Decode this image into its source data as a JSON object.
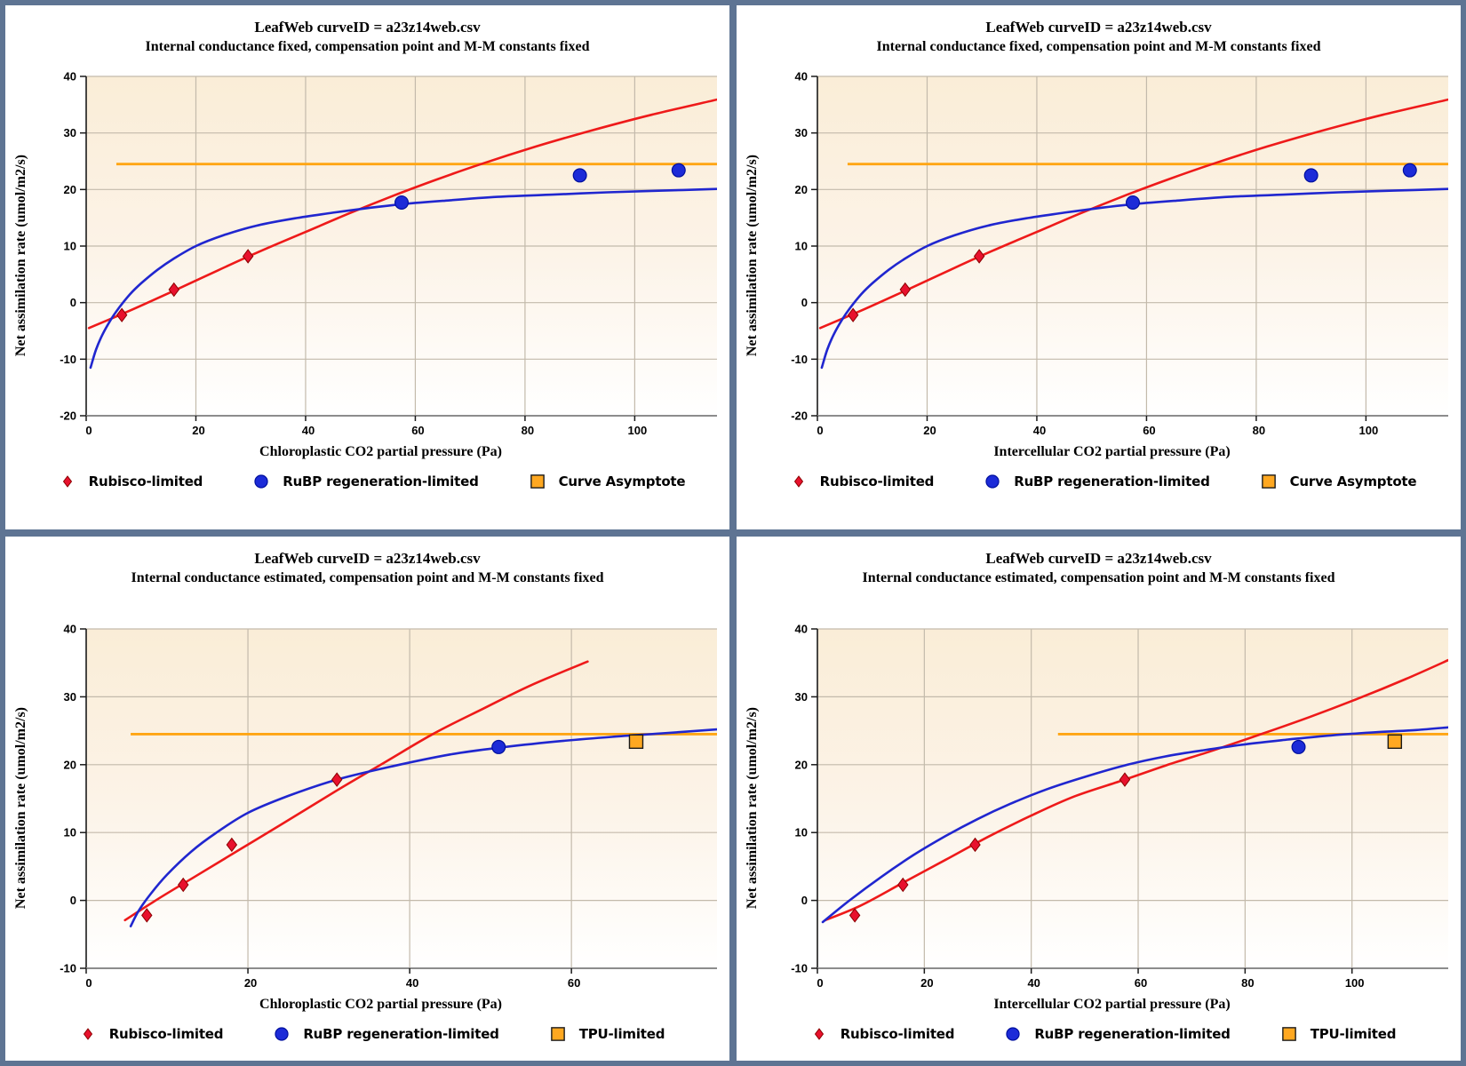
{
  "page": {
    "border_color": "#5E7493",
    "background": "#FFFFFF"
  },
  "colors": {
    "red_curve": "#EE1A1A",
    "blue_curve": "#2026CF",
    "orange": "#FFA513",
    "grid": "#C3BAAB",
    "spine_left": "#1A1A1A",
    "spine_bottom": "#8C8C8C",
    "plot_bg_top": "#FAEDD7",
    "plot_bg_mid": "#FCF3E7",
    "plot_bg_bottom": "#FFFFFF",
    "text": "#000000"
  },
  "chart_data": [
    {
      "type": "scatter",
      "title": "LeafWeb curveID = a23z14web.csv",
      "subtitle": "Internal conductance fixed, compensation point and M-M constants fixed",
      "xlabel": "Chloroplastic CO2 partial pressure (Pa)",
      "ylabel": "Net assimilation rate (umol/m2/s)",
      "xlim": [
        0,
        115
      ],
      "ylim": [
        -20,
        40
      ],
      "xticks": [
        0,
        20,
        40,
        60,
        80,
        100
      ],
      "yticks": [
        -20,
        -10,
        0,
        10,
        20,
        30,
        40
      ],
      "grid": true,
      "legend_position": "bottom",
      "asymptote": {
        "y": 24.5,
        "x_start": 5.5,
        "x_end": 115,
        "color": "#FFA513"
      },
      "series": [
        {
          "name": "Rubisco-limited",
          "marker": "diamond",
          "color": "#E8112D",
          "edge": "#8B0000",
          "points": [
            [
              6.5,
              -2.2
            ],
            [
              16,
              2.3
            ],
            [
              29.5,
              8.2
            ]
          ]
        },
        {
          "name": "RuBP regeneration-limited",
          "marker": "circle",
          "color": "#1C2BD8",
          "edge": "#000F9E",
          "points": [
            [
              57.5,
              17.7
            ],
            [
              90,
              22.5
            ],
            [
              108,
              23.4
            ]
          ]
        },
        {
          "name": "Curve Asymptote",
          "marker": "square",
          "color": "#FFA821",
          "edge": "#1A1A1A",
          "points": []
        }
      ],
      "curves": [
        {
          "name": "rubisco-limited-curve",
          "color": "#EE1A1A",
          "points": [
            [
              0.5,
              -4.5
            ],
            [
              8,
              -1.4
            ],
            [
              16,
              2.1
            ],
            [
              24,
              5.7
            ],
            [
              32,
              9.2
            ],
            [
              40,
              12.5
            ],
            [
              48,
              15.8
            ],
            [
              56,
              18.9
            ],
            [
              64,
              21.8
            ],
            [
              72,
              24.5
            ],
            [
              82,
              27.6
            ],
            [
              92,
              30.4
            ],
            [
              103,
              33.2
            ],
            [
              115,
              35.9
            ]
          ]
        },
        {
          "name": "rubp-regeneration-curve",
          "color": "#2026CF",
          "points": [
            [
              0.8,
              -11.5
            ],
            [
              1.8,
              -8.3
            ],
            [
              3,
              -5.6
            ],
            [
              4.5,
              -3.0
            ],
            [
              6,
              -0.9
            ],
            [
              8,
              1.5
            ],
            [
              10,
              3.4
            ],
            [
              13,
              5.8
            ],
            [
              16,
              7.8
            ],
            [
              20,
              10.0
            ],
            [
              25,
              11.9
            ],
            [
              31,
              13.6
            ],
            [
              38,
              14.9
            ],
            [
              45,
              15.9
            ],
            [
              52,
              16.8
            ],
            [
              57.5,
              17.4
            ],
            [
              65,
              18.0
            ],
            [
              75,
              18.7
            ],
            [
              85,
              19.1
            ],
            [
              95,
              19.5
            ],
            [
              105,
              19.8
            ],
            [
              115,
              20.1
            ]
          ]
        }
      ]
    },
    {
      "type": "scatter",
      "title": "LeafWeb curveID = a23z14web.csv",
      "subtitle": "Internal conductance fixed, compensation point and M-M constants fixed",
      "xlabel": "Intercellular CO2 partial pressure (Pa)",
      "ylabel": "Net assimilation rate (umol/m2/s)",
      "xlim": [
        0,
        115
      ],
      "ylim": [
        -20,
        40
      ],
      "xticks": [
        0,
        20,
        40,
        60,
        80,
        100
      ],
      "yticks": [
        -20,
        -10,
        0,
        10,
        20,
        30,
        40
      ],
      "grid": true,
      "legend_position": "bottom",
      "asymptote": {
        "y": 24.5,
        "x_start": 5.5,
        "x_end": 115,
        "color": "#FFA513"
      },
      "series": [
        {
          "name": "Rubisco-limited",
          "marker": "diamond",
          "color": "#E8112D",
          "edge": "#8B0000",
          "points": [
            [
              6.5,
              -2.2
            ],
            [
              16,
              2.3
            ],
            [
              29.5,
              8.2
            ]
          ]
        },
        {
          "name": "RuBP regeneration-limited",
          "marker": "circle",
          "color": "#1C2BD8",
          "edge": "#000F9E",
          "points": [
            [
              57.5,
              17.7
            ],
            [
              90,
              22.5
            ],
            [
              108,
              23.4
            ]
          ]
        },
        {
          "name": "Curve Asymptote",
          "marker": "square",
          "color": "#FFA821",
          "edge": "#1A1A1A",
          "points": []
        }
      ],
      "curves": [
        {
          "name": "rubisco-limited-curve",
          "color": "#EE1A1A",
          "points": [
            [
              0.5,
              -4.5
            ],
            [
              8,
              -1.4
            ],
            [
              16,
              2.1
            ],
            [
              24,
              5.7
            ],
            [
              32,
              9.2
            ],
            [
              40,
              12.5
            ],
            [
              48,
              15.8
            ],
            [
              56,
              18.9
            ],
            [
              64,
              21.8
            ],
            [
              72,
              24.5
            ],
            [
              82,
              27.6
            ],
            [
              92,
              30.4
            ],
            [
              103,
              33.2
            ],
            [
              115,
              35.9
            ]
          ]
        },
        {
          "name": "rubp-regeneration-curve",
          "color": "#2026CF",
          "points": [
            [
              0.8,
              -11.5
            ],
            [
              1.8,
              -8.3
            ],
            [
              3,
              -5.6
            ],
            [
              4.5,
              -3.0
            ],
            [
              6,
              -0.9
            ],
            [
              8,
              1.5
            ],
            [
              10,
              3.4
            ],
            [
              13,
              5.8
            ],
            [
              16,
              7.8
            ],
            [
              20,
              10.0
            ],
            [
              25,
              11.9
            ],
            [
              31,
              13.6
            ],
            [
              38,
              14.9
            ],
            [
              45,
              15.9
            ],
            [
              52,
              16.8
            ],
            [
              57.5,
              17.4
            ],
            [
              65,
              18.0
            ],
            [
              75,
              18.7
            ],
            [
              85,
              19.1
            ],
            [
              95,
              19.5
            ],
            [
              105,
              19.8
            ],
            [
              115,
              20.1
            ]
          ]
        }
      ]
    },
    {
      "type": "scatter",
      "title": "LeafWeb curveID = a23z14web.csv",
      "subtitle": "Internal conductance estimated, compensation point and M-M constants fixed",
      "xlabel": "Chloroplastic CO2 partial pressure (Pa)",
      "ylabel": "Net assimilation rate (umol/m2/s)",
      "xlim": [
        0,
        78
      ],
      "ylim": [
        -10,
        40
      ],
      "xticks": [
        0,
        20,
        40,
        60
      ],
      "yticks": [
        -10,
        0,
        10,
        20,
        30,
        40
      ],
      "grid": true,
      "legend_position": "bottom",
      "asymptote": {
        "y": 24.5,
        "x_start": 5.5,
        "x_end": 78,
        "color": "#FFA513"
      },
      "series": [
        {
          "name": "Rubisco-limited",
          "marker": "diamond",
          "color": "#E8112D",
          "edge": "#8B0000",
          "points": [
            [
              7.5,
              -2.2
            ],
            [
              12,
              2.3
            ],
            [
              18,
              8.2
            ],
            [
              31,
              17.8
            ]
          ]
        },
        {
          "name": "RuBP regeneration-limited",
          "marker": "circle",
          "color": "#1C2BD8",
          "edge": "#000F9E",
          "points": [
            [
              51,
              22.6
            ]
          ]
        },
        {
          "name": "TPU-limited",
          "marker": "square",
          "color": "#FFA821",
          "edge": "#1A1A1A",
          "points": [
            [
              68,
              23.4
            ]
          ]
        }
      ],
      "curves": [
        {
          "name": "rubisco-limited-curve",
          "color": "#EE1A1A",
          "points": [
            [
              4.8,
              -2.9
            ],
            [
              9,
              0.3
            ],
            [
              14,
              3.9
            ],
            [
              19,
              7.5
            ],
            [
              24,
              11.1
            ],
            [
              31,
              16.2
            ],
            [
              37,
              20.4
            ],
            [
              43,
              24.6
            ],
            [
              49,
              28.2
            ],
            [
              55,
              31.7
            ],
            [
              62,
              35.2
            ]
          ]
        },
        {
          "name": "rubp-regeneration-curve",
          "color": "#2026CF",
          "points": [
            [
              5.5,
              -3.8
            ],
            [
              6.5,
              -1.5
            ],
            [
              8,
              1.0
            ],
            [
              10,
              3.8
            ],
            [
              13,
              7.2
            ],
            [
              16,
              9.9
            ],
            [
              20,
              12.9
            ],
            [
              25,
              15.4
            ],
            [
              31,
              17.8
            ],
            [
              38,
              19.8
            ],
            [
              45,
              21.5
            ],
            [
              51,
              22.5
            ],
            [
              58,
              23.4
            ],
            [
              65,
              24.1
            ],
            [
              71,
              24.6
            ],
            [
              78,
              25.2
            ]
          ]
        }
      ]
    },
    {
      "type": "scatter",
      "title": "LeafWeb curveID = a23z14web.csv",
      "subtitle": "Internal conductance estimated, compensation point and M-M constants fixed",
      "xlabel": "Intercellular CO2 partial pressure (Pa)",
      "ylabel": "Net assimilation rate (umol/m2/s)",
      "xlim": [
        0,
        118
      ],
      "ylim": [
        -10,
        40
      ],
      "xticks": [
        0,
        20,
        40,
        60,
        80,
        100
      ],
      "yticks": [
        -10,
        0,
        10,
        20,
        30,
        40
      ],
      "grid": true,
      "legend_position": "bottom",
      "asymptote": {
        "y": 24.5,
        "x_start": 45,
        "x_end": 118,
        "color": "#FFA513"
      },
      "series": [
        {
          "name": "Rubisco-limited",
          "marker": "diamond",
          "color": "#E8112D",
          "edge": "#8B0000",
          "points": [
            [
              7,
              -2.2
            ],
            [
              16,
              2.3
            ],
            [
              29.5,
              8.2
            ],
            [
              57.5,
              17.8
            ]
          ]
        },
        {
          "name": "RuBP regeneration-limited",
          "marker": "circle",
          "color": "#1C2BD8",
          "edge": "#000F9E",
          "points": [
            [
              90,
              22.6
            ]
          ]
        },
        {
          "name": "TPU-limited",
          "marker": "square",
          "color": "#FFA821",
          "edge": "#1A1A1A",
          "points": [
            [
              108,
              23.4
            ]
          ]
        }
      ],
      "curves": [
        {
          "name": "rubisco-limited-curve",
          "color": "#EE1A1A",
          "points": [
            [
              1.5,
              -2.9
            ],
            [
              8,
              -0.8
            ],
            [
              16,
              2.6
            ],
            [
              24,
              6.0
            ],
            [
              32,
              9.4
            ],
            [
              40,
              12.5
            ],
            [
              48,
              15.3
            ],
            [
              57.5,
              17.8
            ],
            [
              66,
              20.1
            ],
            [
              74,
              22.1
            ],
            [
              83,
              24.5
            ],
            [
              92,
              27.0
            ],
            [
              101,
              29.7
            ],
            [
              110,
              32.6
            ],
            [
              118,
              35.4
            ]
          ]
        },
        {
          "name": "rubp-regeneration-curve",
          "color": "#2026CF",
          "points": [
            [
              1,
              -3.2
            ],
            [
              6,
              0.0
            ],
            [
              12,
              3.5
            ],
            [
              18,
              6.7
            ],
            [
              24,
              9.5
            ],
            [
              30,
              12.0
            ],
            [
              36,
              14.2
            ],
            [
              43,
              16.4
            ],
            [
              50,
              18.2
            ],
            [
              57.5,
              19.9
            ],
            [
              65,
              21.2
            ],
            [
              72,
              22.1
            ],
            [
              80,
              23.0
            ],
            [
              88,
              23.7
            ],
            [
              96,
              24.3
            ],
            [
              105,
              24.8
            ],
            [
              112,
              25.1
            ],
            [
              118,
              25.5
            ]
          ]
        }
      ]
    }
  ]
}
